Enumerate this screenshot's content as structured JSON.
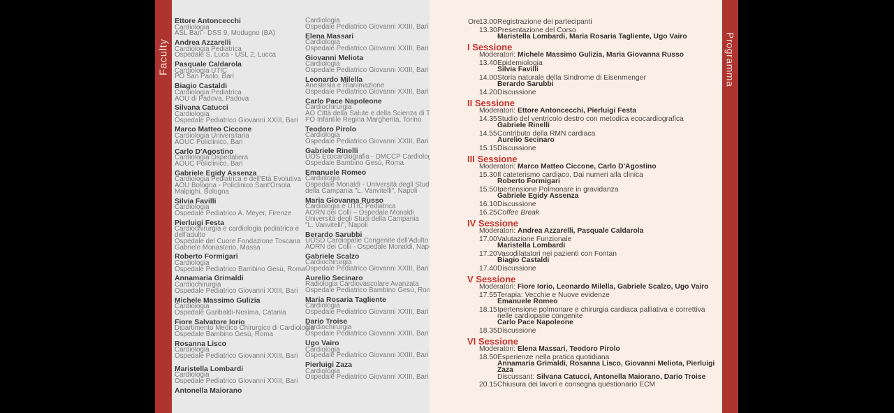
{
  "accent": {
    "strip_red": "#ae3430",
    "heading_red": "#c5352e",
    "faculty_bg": "#e9e8e8",
    "program_bg": "#faeee6"
  },
  "faculty": {
    "side_label": "Faculty",
    "columns": [
      {
        "entries": [
          {
            "name": "Ettore Antoncecchi",
            "lines": [
              "Cardiologia",
              "ASL Bari - DSS 9, Modugno (BA)"
            ]
          },
          {
            "name": "Andrea Azzarelli",
            "lines": [
              "Cardiologia Pediatrica",
              "Ospedale S. Luca - USL 2, Lucca"
            ]
          },
          {
            "name": "Pasquale Caldarola",
            "lines": [
              "Cardiologia UTIC",
              "PO San Paolo, Bari"
            ]
          },
          {
            "name": "Biagio Castaldi",
            "lines": [
              "Cardiologia Pediatrica",
              "AOU di Padova, Padova"
            ]
          },
          {
            "name": "Silvana Catucci",
            "lines": [
              "Cardiologia",
              "Ospedale Pediatrico Giovanni XXIII, Bari"
            ]
          },
          {
            "name": "Marco Matteo Ciccone",
            "lines": [
              "Cardiologia Universitaria",
              "AOUC Policlinico, Bari"
            ]
          },
          {
            "name": "Carlo D'Agostino",
            "lines": [
              "Cardiologia Ospedaliera",
              "AOUC Policlinico, Bari"
            ]
          },
          {
            "name": "Gabriele Egidy Assenza",
            "lines": [
              "Cardiologia Pediatrica e dell'Età Evolutiva",
              "AOU Bologna - Policlinico Sant'Orsola",
              "Malpighi, Bologna"
            ]
          },
          {
            "name": "Silvia Favilli",
            "lines": [
              "Cardiologia",
              "Ospedale Pediatrico A. Meyer, Firenze"
            ]
          },
          {
            "name": "Pierluigi Festa",
            "lines": [
              "Cardiochirurgia e cardiologia pediatrica e",
              "dell'adulto",
              "Ospedale del Cuore Fondazione Toscana",
              "Gabriele Monasterio, Massa"
            ]
          },
          {
            "name": "Roberto Formigari",
            "lines": [
              "Cardiologia",
              "Ospedale Pediatrico Bambino Gesù, Roma"
            ]
          },
          {
            "name": "Annamaria Grimaldi",
            "lines": [
              "Cardiochirurgia",
              "Ospedale Pediatrico Giovanni XXIII, Bari"
            ]
          },
          {
            "name": "Michele Massimo Gulizia",
            "lines": [
              "Cardiologia",
              "Ospedale Garibaldi-Nesima, Catania"
            ]
          },
          {
            "name": "Fiore Salvatore Iorio",
            "lines": [
              "Dipartimento Medico Chirurgico di Cardiologia",
              "Ospedale Bambino Gesù, Roma"
            ]
          },
          {
            "name": "Rosanna Lisco",
            "lines": [
              "Cardiologia",
              "Ospedale Pediatrico Giovanni XXIII, Bari"
            ]
          },
          {
            "name": "Maristella Lombardi",
            "gap": true,
            "lines": [
              "Cardiologia",
              "Ospedale Pediatrico Giovanni XXIII, Bari"
            ]
          },
          {
            "name": "Antonella Maiorano",
            "lines": []
          }
        ]
      },
      {
        "entries": [
          {
            "name": "",
            "lines": [
              "Cardiologia",
              "Ospedale Pediatrico Giovanni XXIII, Bari"
            ]
          },
          {
            "name": "Elena Massari",
            "lines": [
              "Cardiologia",
              "Ospedale Pediatrico Giovanni XXIII, Bari"
            ]
          },
          {
            "name": "Giovanni Meliota",
            "lines": [
              "Cardiologia",
              "Ospedale Pediatrico Giovanni XXIII, Bari"
            ]
          },
          {
            "name": "Leonardo Milella",
            "lines": [
              "Anestesia e Rianimazione",
              "Ospedale Pediatrico Giovanni XXIII, Bari"
            ]
          },
          {
            "name": "Carlo Pace Napoleone",
            "lines": [
              "Cardiochirurgia",
              "AO Città della Salute e della Scienza di Torino",
              "PO Infantile Regina Margherita, Torino"
            ]
          },
          {
            "name": "Teodoro Pirolo",
            "lines": [
              "Cardiologia",
              "Ospedale Pediatrico Giovanni XXIII, Bari"
            ]
          },
          {
            "name": "Gabriele Rinelli",
            "lines": [
              "UOS Ecocardiografia - DMCCP Cardiologia",
              "Ospedale Bambino Gesù, Roma"
            ]
          },
          {
            "name": "Emanuele Romeo",
            "lines": [
              "Cardiologia",
              "Ospedale Monaldi - Università degli Studi",
              "della Campania \"L. Vanvitelli\", Napoli"
            ]
          },
          {
            "name": "Maria Giovanna Russo",
            "lines": [
              "Cardiologia e UTIC Pediatrica",
              "AORN dei Colli – Ospedale Monaldi",
              "Università degli Studi della Campania",
              "\"L. Vanvitelli\", Napoli"
            ]
          },
          {
            "name": "Berardo Sarubbi",
            "lines": [
              "UOSD Cardiopatie Congenite dell'Adulto",
              "AORN dei Colli - Ospedale Monaldi, Napoli"
            ]
          },
          {
            "name": "Gabriele Scalzo",
            "lines": [
              "Cardiochirurgia",
              "Ospedale Pediatrico Giovanni XXIII, Bari"
            ]
          },
          {
            "name": "Aurelio Secinaro",
            "lines": [
              "Radiologia Cardiovascolare Avanzata",
              "Ospedale Pediatrico Bambino Gesù, Roma"
            ]
          },
          {
            "name": "Maria Rosaria Tagliente",
            "lines": [
              "Cardiologia",
              "Ospedale Pediatrico Giovanni XXIII, Bari"
            ]
          },
          {
            "name": "Dario Troise",
            "lines": [
              "Cardiochirurgia",
              "Ospedale Pediatrico Giovanni XXIII, Bari"
            ]
          },
          {
            "name": "Ugo Vairo",
            "lines": [
              "Cardiologia",
              "Ospedale Pediatrico Giovanni XXIII, Bari"
            ]
          },
          {
            "name": "Pierluigi Zaza",
            "lines": [
              "Cardiologia",
              "Ospedale Pediatrico Giovanni XXIII, Bari"
            ]
          }
        ]
      }
    ]
  },
  "program": {
    "side_label": "Programma",
    "moderators_label": "Moderatori:",
    "discussant_label": "Discussant:",
    "intro": [
      {
        "ore": "Ore",
        "time": "13.00",
        "title": "Registrazione dei partecipanti"
      },
      {
        "time": "13.30",
        "title": "Presentazione del Corso",
        "speakers": "Maristella Lombardi, Maria Rosaria Tagliente, Ugo Vairo"
      }
    ],
    "sessions": [
      {
        "name": "I Sessione",
        "moderators": "Michele Massimo Gulizia, Maria Giovanna Russo",
        "items": [
          {
            "time": "13.40",
            "title": "Epidemiologia",
            "speakers": "Silvia Favilli"
          },
          {
            "time": "14.00",
            "title": "Storia naturale della Sindrome di Eisenmenger",
            "speakers": "Berardo Sarubbi"
          },
          {
            "time": "14.20",
            "title": "Discussione"
          }
        ]
      },
      {
        "name": "II Sessione",
        "moderators": "Ettore Antoncecchi, Pierluigi Festa",
        "items": [
          {
            "time": "14.35",
            "title": "Studio del ventricolo destro con metodica ecocardiografica",
            "speakers": "Gabriele Rinelli"
          },
          {
            "time": "14.55",
            "title": "Contributo della RMN cardiaca",
            "speakers": "Aurelio Secinaro"
          },
          {
            "time": "15.15",
            "title": "Discussione"
          }
        ]
      },
      {
        "name": "III Sessione",
        "moderators": "Marco Matteo Ciccone, Carlo D'Agostino",
        "items": [
          {
            "time": "15.30",
            "title": "Il cateterismo cardiaco. Dai numeri alla clinica",
            "speakers": "Roberto Formigari"
          },
          {
            "time": "15.50",
            "title": "Ipertensione Polmonare in gravidanza",
            "speakers": "Gabriele Egidy Assenza"
          },
          {
            "time": "16.10",
            "title": "Discussione"
          },
          {
            "time": "16.25",
            "title": "Coffee Break",
            "italic": true
          }
        ]
      },
      {
        "name": "IV Sessione",
        "moderators": "Andrea Azzarelli, Pasquale Caldarola",
        "items": [
          {
            "time": "17.00",
            "title": "Valutazione Funzionale",
            "speakers": "Maristella Lombardi"
          },
          {
            "time": "17.20",
            "title": "Vasodilatatori nei pazienti con Fontan",
            "speakers": "Biagio Castaldi"
          },
          {
            "time": "17.40",
            "title": "Discussione"
          }
        ]
      },
      {
        "name": "V Sessione",
        "moderators": "Fiore Iorio, Leonardo Milella, Gabriele Scalzo, Ugo Vairo",
        "items": [
          {
            "time": "17.55",
            "title": "Terapia: Vecchie e Nuove evidenze",
            "speakers": "Emanuele Romeo"
          },
          {
            "time": "18.15",
            "title": "Ipertensione polmonare e chirurgia cardiaca palliativa e correttiva nelle cardiopatie congenite",
            "speakers": "Carlo Pace Napoleone"
          },
          {
            "time": "18.35",
            "title": "Discussione"
          }
        ]
      },
      {
        "name": "VI Sessione",
        "moderators": "Elena Massari, Teodoro Pirolo",
        "items": [
          {
            "time": "18.50",
            "title": "Esperienze nella pratica quotidiana",
            "speakers": "Annamaria Grimaldi, Rosanna Lisco, Giovanni Meliota, Pierluigi Zaza",
            "discussants": "Silvana Catucci, Antonella Maiorano, Dario Troise"
          },
          {
            "time": "20.15",
            "title": "Chiusura dei lavori e consegna questionario ECM"
          }
        ]
      }
    ]
  }
}
